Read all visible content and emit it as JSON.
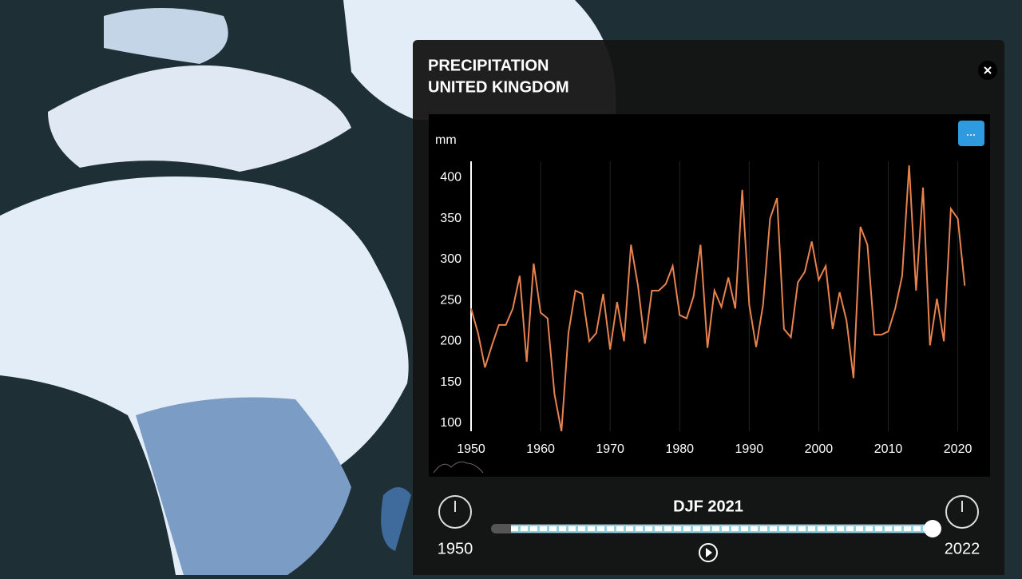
{
  "chart_data": {
    "type": "line",
    "title": "PRECIPITATION",
    "subtitle": "UNITED KINGDOM",
    "y_label": "mm",
    "x": [
      1950,
      1951,
      1952,
      1953,
      1954,
      1955,
      1956,
      1957,
      1958,
      1959,
      1960,
      1961,
      1962,
      1963,
      1964,
      1965,
      1966,
      1967,
      1968,
      1969,
      1970,
      1971,
      1972,
      1973,
      1974,
      1975,
      1976,
      1977,
      1978,
      1979,
      1980,
      1981,
      1982,
      1983,
      1984,
      1985,
      1986,
      1987,
      1988,
      1989,
      1990,
      1991,
      1992,
      1993,
      1994,
      1995,
      1996,
      1997,
      1998,
      1999,
      2000,
      2001,
      2002,
      2003,
      2004,
      2005,
      2006,
      2007,
      2008,
      2009,
      2010,
      2011,
      2012,
      2013,
      2014,
      2015,
      2016,
      2017,
      2018,
      2019,
      2020,
      2021
    ],
    "series": [
      {
        "name": "Precipitation",
        "color": "#e8834f",
        "values": [
          240,
          210,
          168,
          195,
          220,
          220,
          240,
          280,
          175,
          295,
          235,
          228,
          135,
          90,
          210,
          262,
          258,
          200,
          210,
          258,
          190,
          248,
          200,
          318,
          268,
          197,
          262,
          262,
          270,
          292,
          232,
          228,
          255,
          318,
          192,
          262,
          242,
          278,
          240,
          385,
          245,
          193,
          245,
          350,
          375,
          215,
          205,
          272,
          285,
          322,
          275,
          292,
          215,
          260,
          225,
          155,
          340,
          318,
          208,
          208,
          212,
          240,
          280,
          415,
          262,
          388,
          195,
          252,
          200,
          362,
          350,
          268
        ]
      }
    ],
    "xlim": [
      1950,
      2022
    ],
    "xticks": [
      1950,
      1960,
      1970,
      1980,
      1990,
      2000,
      2010,
      2020
    ],
    "ylim": [
      90,
      420
    ],
    "yticks": [
      100,
      150,
      200,
      250,
      300,
      350,
      400
    ],
    "grid": "x"
  },
  "slider": {
    "label": "DJF 2021",
    "start": 1950,
    "end": 2022
  }
}
